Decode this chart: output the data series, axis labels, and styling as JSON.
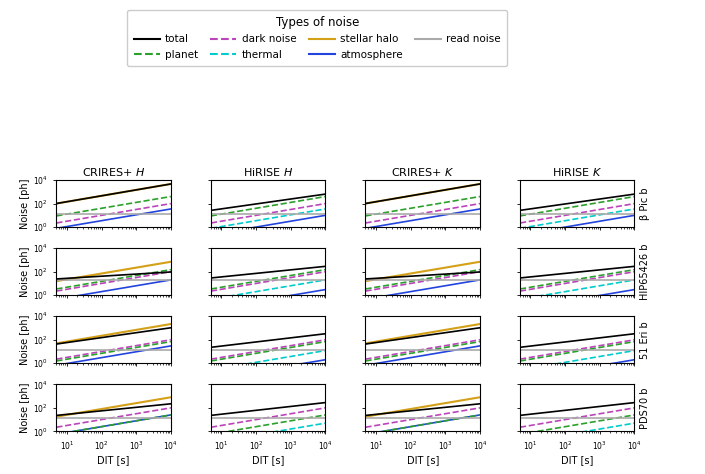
{
  "col_titles": [
    "CRIRES+ $H$",
    "HiRISE $H$",
    "CRIRES+ $K$",
    "HiRISE $K$"
  ],
  "row_labels": [
    "β Pic b",
    "HIP65426 b",
    "51 Eri b",
    "PDS70 b"
  ],
  "xlabel": "DIT [s]",
  "ylabel": "Noise [ph]",
  "legend_title": "Types of noise",
  "x_range": [
    5,
    10000
  ],
  "y_range_min": 1,
  "y_range_max": 10000,
  "background_color": "#ffffff",
  "style_map": {
    "total": {
      "color": "#000000",
      "ls": "-",
      "lw": 1.2
    },
    "stellar_halo": {
      "color": "#d4a017",
      "ls": "-",
      "lw": 1.5
    },
    "planet": {
      "color": "#2ca02c",
      "ls": "--",
      "lw": 1.2
    },
    "atmosphere": {
      "color": "#2244dd",
      "ls": "-",
      "lw": 1.2
    },
    "dark_noise": {
      "color": "#bb44bb",
      "ls": "--",
      "lw": 1.2
    },
    "read_noise": {
      "color": "#aaaaaa",
      "ls": "-",
      "lw": 1.2
    },
    "thermal": {
      "color": "#00cccc",
      "ls": "--",
      "lw": 1.2
    }
  },
  "draw_order": [
    "stellar_halo",
    "atmosphere",
    "dark_noise",
    "thermal",
    "planet",
    "read_noise",
    "total"
  ],
  "rows": [
    {
      "name": "beta_pic_b",
      "cols": [
        {
          "lines": {
            "stellar_halo": {
              "a": 45.0,
              "p": 0.505
            },
            "total": {
              "a": 45.0,
              "p": 0.505
            },
            "planet": {
              "a": 4.0,
              "p": 0.5
            },
            "atmosphere": {
              "a": 0.35,
              "p": 0.5
            },
            "dark_noise": {
              "a": 1.0,
              "p": 0.5
            },
            "read_noise": {
              "a": 13.0,
              "p": 0.0
            },
            "thermal": null
          }
        },
        {
          "lines": {
            "stellar_halo": null,
            "total": {
              "a": 13.5,
              "p": 0.42
            },
            "planet": {
              "a": 4.0,
              "p": 0.5
            },
            "atmosphere": {
              "a": 0.1,
              "p": 0.5
            },
            "dark_noise": {
              "a": 1.0,
              "p": 0.5
            },
            "read_noise": {
              "a": 13.0,
              "p": 0.0
            },
            "thermal": {
              "a": 0.35,
              "p": 0.5
            }
          }
        },
        {
          "lines": {
            "stellar_halo": {
              "a": 45.0,
              "p": 0.505
            },
            "total": {
              "a": 45.0,
              "p": 0.505
            },
            "planet": {
              "a": 4.0,
              "p": 0.5
            },
            "atmosphere": {
              "a": 0.35,
              "p": 0.5
            },
            "dark_noise": {
              "a": 1.0,
              "p": 0.5
            },
            "read_noise": {
              "a": 13.0,
              "p": 0.0
            },
            "thermal": null
          }
        },
        {
          "lines": {
            "stellar_halo": null,
            "total": {
              "a": 13.5,
              "p": 0.42
            },
            "planet": {
              "a": 4.0,
              "p": 0.5
            },
            "atmosphere": {
              "a": 0.1,
              "p": 0.5
            },
            "dark_noise": {
              "a": 1.0,
              "p": 0.5
            },
            "read_noise": {
              "a": 13.0,
              "p": 0.0
            },
            "thermal": {
              "a": 0.35,
              "p": 0.5
            }
          }
        }
      ]
    },
    {
      "name": "hip65426_b",
      "cols": [
        {
          "lines": {
            "stellar_halo": {
              "a": 7.0,
              "p": 0.5
            },
            "total": {
              "a": 18.0,
              "p": 0.18
            },
            "planet": {
              "a": 1.5,
              "p": 0.5
            },
            "atmosphere": {
              "a": 0.2,
              "p": 0.5
            },
            "dark_noise": {
              "a": 1.0,
              "p": 0.5
            },
            "read_noise": {
              "a": 18.0,
              "p": 0.0
            },
            "thermal": null
          }
        },
        {
          "lines": {
            "stellar_halo": null,
            "total": {
              "a": 18.0,
              "p": 0.3
            },
            "planet": {
              "a": 1.5,
              "p": 0.5
            },
            "atmosphere": {
              "a": 0.03,
              "p": 0.5
            },
            "dark_noise": {
              "a": 1.0,
              "p": 0.5
            },
            "read_noise": {
              "a": 18.0,
              "p": 0.0
            },
            "thermal": {
              "a": 0.2,
              "p": 0.5
            }
          }
        },
        {
          "lines": {
            "stellar_halo": {
              "a": 7.0,
              "p": 0.5
            },
            "total": {
              "a": 18.0,
              "p": 0.18
            },
            "planet": {
              "a": 1.5,
              "p": 0.5
            },
            "atmosphere": {
              "a": 0.2,
              "p": 0.5
            },
            "dark_noise": {
              "a": 1.0,
              "p": 0.5
            },
            "read_noise": {
              "a": 18.0,
              "p": 0.0
            },
            "thermal": null
          }
        },
        {
          "lines": {
            "stellar_halo": null,
            "total": {
              "a": 18.0,
              "p": 0.3
            },
            "planet": {
              "a": 1.5,
              "p": 0.5
            },
            "atmosphere": {
              "a": 0.03,
              "p": 0.5
            },
            "dark_noise": {
              "a": 1.0,
              "p": 0.5
            },
            "read_noise": {
              "a": 18.0,
              "p": 0.0
            },
            "thermal": {
              "a": 0.2,
              "p": 0.5
            }
          }
        }
      ]
    },
    {
      "name": "51_eri_b",
      "cols": [
        {
          "lines": {
            "stellar_halo": {
              "a": 22.0,
              "p": 0.5
            },
            "total": {
              "a": 22.0,
              "p": 0.42
            },
            "planet": {
              "a": 0.7,
              "p": 0.5
            },
            "atmosphere": {
              "a": 0.3,
              "p": 0.5
            },
            "dark_noise": {
              "a": 1.0,
              "p": 0.5
            },
            "read_noise": {
              "a": 13.0,
              "p": 0.0
            },
            "thermal": null
          }
        },
        {
          "lines": {
            "stellar_halo": null,
            "total": {
              "a": 13.0,
              "p": 0.35
            },
            "planet": {
              "a": 0.7,
              "p": 0.5
            },
            "atmosphere": {
              "a": 0.02,
              "p": 0.5
            },
            "dark_noise": {
              "a": 1.0,
              "p": 0.5
            },
            "read_noise": {
              "a": 13.0,
              "p": 0.0
            },
            "thermal": {
              "a": 0.12,
              "p": 0.5
            }
          }
        },
        {
          "lines": {
            "stellar_halo": {
              "a": 22.0,
              "p": 0.5
            },
            "total": {
              "a": 22.0,
              "p": 0.42
            },
            "planet": {
              "a": 0.7,
              "p": 0.5
            },
            "atmosphere": {
              "a": 0.3,
              "p": 0.5
            },
            "dark_noise": {
              "a": 1.0,
              "p": 0.5
            },
            "read_noise": {
              "a": 13.0,
              "p": 0.0
            },
            "thermal": null
          }
        },
        {
          "lines": {
            "stellar_halo": null,
            "total": {
              "a": 13.0,
              "p": 0.35
            },
            "planet": {
              "a": 0.7,
              "p": 0.5
            },
            "atmosphere": {
              "a": 0.02,
              "p": 0.5
            },
            "dark_noise": {
              "a": 1.0,
              "p": 0.5
            },
            "read_noise": {
              "a": 13.0,
              "p": 0.0
            },
            "thermal": {
              "a": 0.12,
              "p": 0.5
            }
          }
        }
      ]
    },
    {
      "name": "pds70_b",
      "cols": [
        {
          "lines": {
            "stellar_halo": {
              "a": 8.0,
              "p": 0.5
            },
            "total": {
              "a": 14.0,
              "p": 0.3
            },
            "planet": {
              "a": 0.25,
              "p": 0.5
            },
            "atmosphere": {
              "a": 0.25,
              "p": 0.5
            },
            "dark_noise": {
              "a": 1.0,
              "p": 0.5
            },
            "read_noise": {
              "a": 13.5,
              "p": 0.0
            },
            "thermal": null
          }
        },
        {
          "lines": {
            "stellar_halo": null,
            "total": {
              "a": 13.5,
              "p": 0.33
            },
            "planet": {
              "a": 0.25,
              "p": 0.5
            },
            "atmosphere": {
              "a": 0.008,
              "p": 0.5
            },
            "dark_noise": {
              "a": 1.0,
              "p": 0.5
            },
            "read_noise": {
              "a": 13.5,
              "p": 0.0
            },
            "thermal": {
              "a": 0.05,
              "p": 0.5
            }
          }
        },
        {
          "lines": {
            "stellar_halo": {
              "a": 8.0,
              "p": 0.5
            },
            "total": {
              "a": 14.0,
              "p": 0.3
            },
            "planet": {
              "a": 0.25,
              "p": 0.5
            },
            "atmosphere": {
              "a": 0.25,
              "p": 0.5
            },
            "dark_noise": {
              "a": 1.0,
              "p": 0.5
            },
            "read_noise": {
              "a": 13.5,
              "p": 0.0
            },
            "thermal": null
          }
        },
        {
          "lines": {
            "stellar_halo": null,
            "total": {
              "a": 13.5,
              "p": 0.33
            },
            "planet": {
              "a": 0.25,
              "p": 0.5
            },
            "atmosphere": {
              "a": 0.008,
              "p": 0.5
            },
            "dark_noise": {
              "a": 1.0,
              "p": 0.5
            },
            "read_noise": {
              "a": 13.5,
              "p": 0.0
            },
            "thermal": {
              "a": 0.05,
              "p": 0.5
            }
          }
        }
      ]
    }
  ]
}
